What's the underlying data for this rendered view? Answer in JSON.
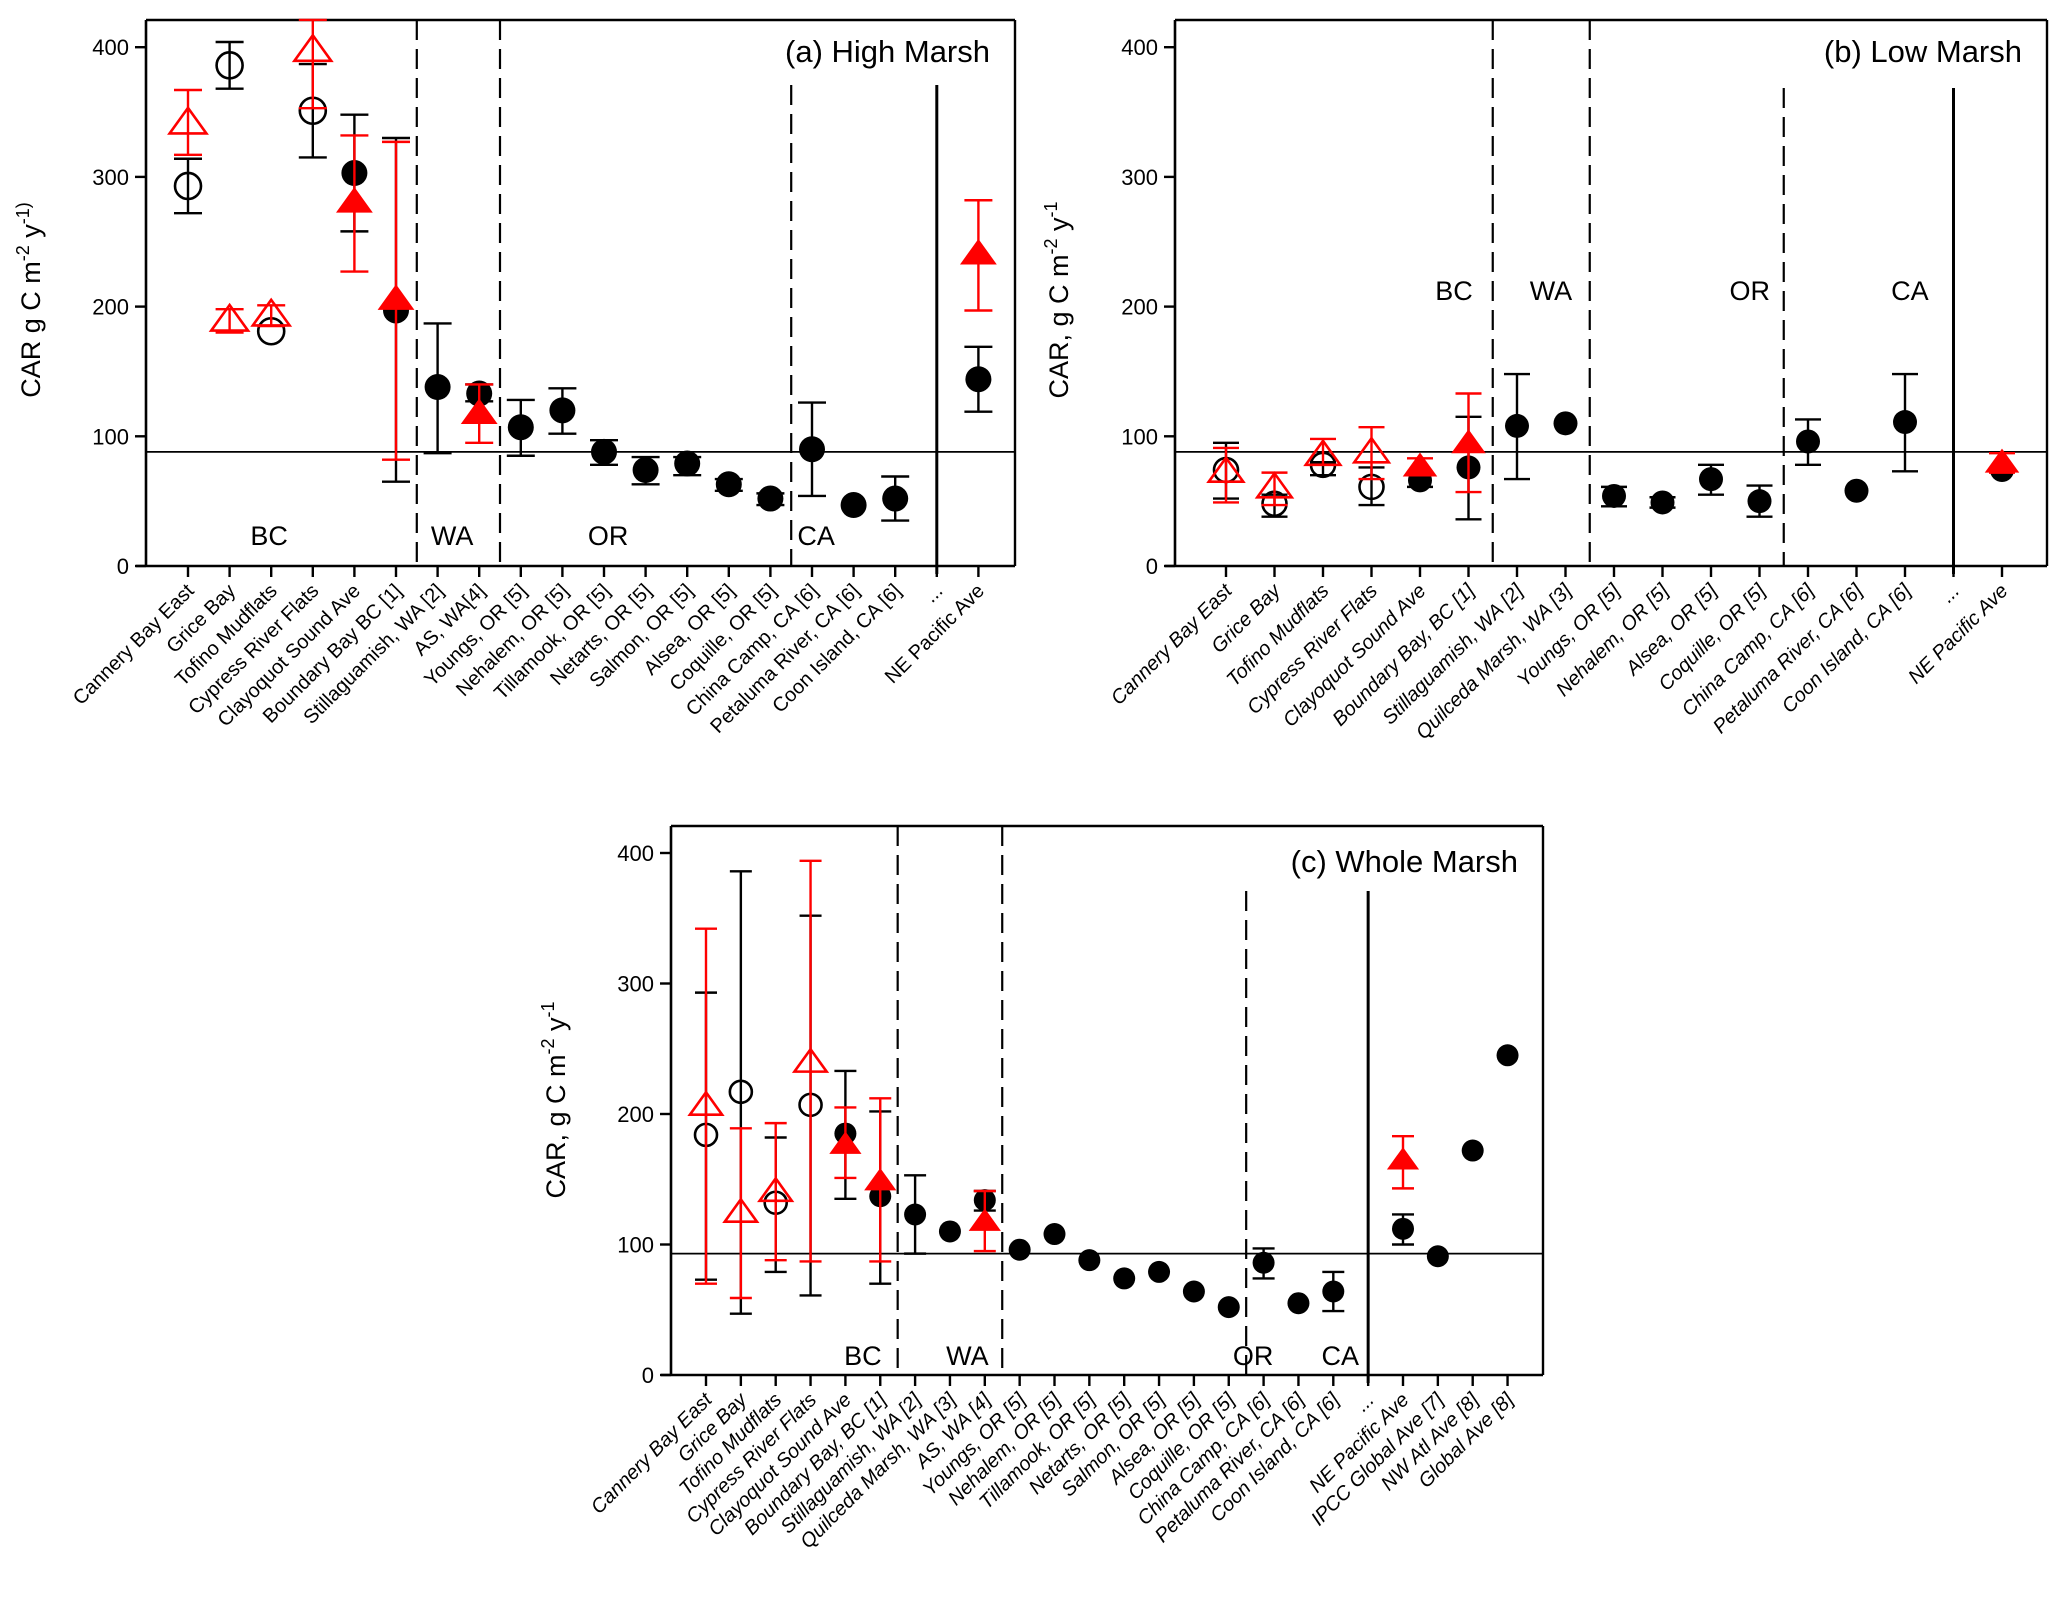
{
  "colors": {
    "black": "#000000",
    "red": "#ff0000"
  },
  "chart_data": [
    {
      "panel": "a",
      "type": "scatter",
      "title": "(a) High Marsh",
      "ylabel": {
        "base": "CAR g C m",
        "sup1": "-2",
        "mid": " y",
        "sup2": "-1)"
      },
      "xlabel": "",
      "ylim": [
        0,
        425
      ],
      "yticks": [
        0,
        100,
        200,
        300,
        400
      ],
      "grid": false,
      "italic_categories": false,
      "reference_line": 88,
      "categories": [
        "Cannery Bay East",
        "Grice Bay",
        "Tofino Mudflats",
        "Cypress River Flats",
        "Clayoquot Sound Ave",
        "Boundary Bay BC [1]",
        "Stillaguamish, WA [2]",
        "AS, WA[4]",
        "Youngs, OR [5]",
        "Nehalem, OR [5]",
        "Tillamook, OR [5]",
        "Netarts, OR [5]",
        "Salmon, OR [5]",
        "Alsea, OR [5]",
        "Coquille, OR [5]",
        "China Camp, CA [6]",
        "Petaluma River, CA [6]",
        "Coon Island, CA [6]",
        "...",
        "NE Pacific Ave"
      ],
      "regions": [
        {
          "label": "BC",
          "start": 0,
          "end": 5
        },
        {
          "label": "WA",
          "start": 6,
          "end": 7
        },
        {
          "label": "OR",
          "start": 8,
          "end": 14
        },
        {
          "label": "CA",
          "start": 15,
          "end": 17
        }
      ],
      "break_index": 18,
      "series": [
        {
          "marker": "open-circle",
          "color": "black",
          "points": [
            {
              "cat": 0,
              "v": 293,
              "lo": 272,
              "hi": 314
            },
            {
              "cat": 1,
              "v": 386,
              "lo": 368,
              "hi": 404
            },
            {
              "cat": 2,
              "v": 181
            },
            {
              "cat": 3,
              "v": 351,
              "lo": 315,
              "hi": 387
            }
          ]
        },
        {
          "marker": "open-triangle",
          "color": "red",
          "points": [
            {
              "cat": 0,
              "v": 341,
              "lo": 317,
              "hi": 367
            },
            {
              "cat": 1,
              "v": 189,
              "lo": 180,
              "hi": 198
            },
            {
              "cat": 2,
              "v": 193,
              "lo": 185,
              "hi": 201
            },
            {
              "cat": 3,
              "v": 397,
              "lo": 353,
              "hi": 421
            }
          ]
        },
        {
          "marker": "filled-circle",
          "color": "black",
          "points": [
            {
              "cat": 4,
              "v": 303,
              "lo": 258,
              "hi": 348
            },
            {
              "cat": 5,
              "v": 197,
              "lo": 65,
              "hi": 330
            },
            {
              "cat": 6,
              "v": 138,
              "lo": 87,
              "hi": 187
            },
            {
              "cat": 7,
              "v": 133,
              "lo": 127,
              "hi": 140
            },
            {
              "cat": 8,
              "v": 107,
              "lo": 85,
              "hi": 128
            },
            {
              "cat": 9,
              "v": 120,
              "lo": 102,
              "hi": 137
            },
            {
              "cat": 10,
              "v": 88,
              "lo": 78,
              "hi": 97
            },
            {
              "cat": 11,
              "v": 74,
              "lo": 63,
              "hi": 84
            },
            {
              "cat": 12,
              "v": 79,
              "lo": 70,
              "hi": 84
            },
            {
              "cat": 13,
              "v": 63,
              "lo": 58,
              "hi": 67
            },
            {
              "cat": 14,
              "v": 52,
              "lo": 47,
              "hi": 56
            },
            {
              "cat": 15,
              "v": 90,
              "lo": 54,
              "hi": 126
            },
            {
              "cat": 16,
              "v": 47
            },
            {
              "cat": 17,
              "v": 52,
              "lo": 35,
              "hi": 69
            },
            {
              "cat": 19,
              "v": 144,
              "lo": 119,
              "hi": 169
            }
          ]
        },
        {
          "marker": "filled-triangle",
          "color": "red",
          "points": [
            {
              "cat": 4,
              "v": 280,
              "lo": 227,
              "hi": 332
            },
            {
              "cat": 5,
              "v": 205,
              "lo": 82,
              "hi": 327
            },
            {
              "cat": 7,
              "v": 117,
              "lo": 95,
              "hi": 140
            },
            {
              "cat": 19,
              "v": 240,
              "lo": 197,
              "hi": 282
            }
          ]
        }
      ]
    },
    {
      "panel": "b",
      "type": "scatter",
      "title": "(b) Low Marsh",
      "ylabel": {
        "base": "CAR, g C m",
        "sup1": "-2",
        "mid": " y",
        "sup2": "-1"
      },
      "xlabel": "",
      "ylim": [
        0,
        425
      ],
      "yticks": [
        0,
        100,
        200,
        300,
        400
      ],
      "grid": false,
      "italic_categories": true,
      "reference_line": 88,
      "categories": [
        "Cannery Bay East",
        "Grice Bay",
        "Tofino Mudflats",
        "Cypress River Flats",
        "Clayoquot Sound Ave",
        "Boundary Bay, BC [1]",
        "Stillaguamish, WA [2]",
        "Quilceda Marsh, WA [3]",
        "Youngs, OR [5]",
        "Nehalem, OR [5]",
        "Alsea, OR [5]",
        "Coquille, OR [5]",
        "China Camp, CA [6]",
        "Petaluma River, CA [6]",
        "Coon Island, CA [6]",
        "...",
        "NE Pacific Ave"
      ],
      "regions": [
        {
          "label": "BC",
          "start": 0,
          "end": 5
        },
        {
          "label": "WA",
          "start": 6,
          "end": 7
        },
        {
          "label": "OR",
          "start": 8,
          "end": 11
        },
        {
          "label": "CA",
          "start": 12,
          "end": 14
        }
      ],
      "break_index": 15,
      "series": [
        {
          "marker": "open-circle",
          "color": "black",
          "points": [
            {
              "cat": 0,
              "v": 74,
              "lo": 52,
              "hi": 95
            },
            {
              "cat": 1,
              "v": 48,
              "lo": 38,
              "hi": 55
            },
            {
              "cat": 2,
              "v": 78,
              "lo": 70,
              "hi": 80
            },
            {
              "cat": 3,
              "v": 61,
              "lo": 47,
              "hi": 76
            }
          ]
        },
        {
          "marker": "open-triangle",
          "color": "red",
          "points": [
            {
              "cat": 0,
              "v": 72,
              "lo": 49,
              "hi": 91
            },
            {
              "cat": 1,
              "v": 60,
              "lo": 47,
              "hi": 72
            },
            {
              "cat": 2,
              "v": 85,
              "lo": 78,
              "hi": 98
            },
            {
              "cat": 3,
              "v": 87,
              "lo": 67,
              "hi": 107
            }
          ]
        },
        {
          "marker": "filled-circle",
          "color": "black",
          "points": [
            {
              "cat": 4,
              "v": 66,
              "lo": 61,
              "hi": 70
            },
            {
              "cat": 5,
              "v": 76,
              "lo": 36,
              "hi": 115
            },
            {
              "cat": 6,
              "v": 108,
              "lo": 67,
              "hi": 148
            },
            {
              "cat": 7,
              "v": 110
            },
            {
              "cat": 8,
              "v": 54,
              "lo": 46,
              "hi": 61
            },
            {
              "cat": 9,
              "v": 49,
              "lo": 45,
              "hi": 53
            },
            {
              "cat": 10,
              "v": 67,
              "lo": 55,
              "hi": 78
            },
            {
              "cat": 11,
              "v": 50,
              "lo": 38,
              "hi": 62
            },
            {
              "cat": 12,
              "v": 96,
              "lo": 78,
              "hi": 113
            },
            {
              "cat": 13,
              "v": 58
            },
            {
              "cat": 14,
              "v": 111,
              "lo": 73,
              "hi": 148
            },
            {
              "cat": 16,
              "v": 74
            }
          ]
        },
        {
          "marker": "filled-triangle",
          "color": "red",
          "points": [
            {
              "cat": 4,
              "v": 76,
              "lo": 70,
              "hi": 83
            },
            {
              "cat": 5,
              "v": 94,
              "lo": 57,
              "hi": 133
            },
            {
              "cat": 16,
              "v": 79,
              "lo": 72,
              "hi": 87
            }
          ]
        }
      ]
    },
    {
      "panel": "c",
      "type": "scatter",
      "title": "(c) Whole Marsh",
      "ylabel": {
        "base": "CAR, g C m",
        "sup1": "-2",
        "mid": " y",
        "sup2": "-1"
      },
      "xlabel": "",
      "ylim": [
        0,
        420
      ],
      "yticks": [
        0,
        100,
        200,
        300,
        400
      ],
      "grid": false,
      "italic_categories": true,
      "reference_line": 93,
      "categories": [
        "Cannery Bay East",
        "Grice Bay",
        "Tofino Mudflats",
        "Cypress River Flats",
        "Clayoquot Sound Ave",
        "Boundary Bay, BC [1]",
        "Stillaguamish, WA [2]",
        "Quilceda Marsh, WA [3]",
        "AS, WA [4]",
        "Youngs, OR [5]",
        "Nehalem, OR [5]",
        "Tillamook, OR [5]",
        "Netarts, OR [5]",
        "Salmon, OR [5]",
        "Alsea, OR [5]",
        "Coquille, OR [5]",
        "China Camp, CA [6]",
        "Petaluma River, CA [6]",
        "Coon Island, CA [6]",
        "...",
        "NE Pacific Ave",
        "IPCC Global Ave [7]",
        "NW Atl Ave [8]",
        "Global Ave [8]"
      ],
      "regions": [
        {
          "label": "BC",
          "start": 0,
          "end": 5
        },
        {
          "label": "WA",
          "start": 6,
          "end": 8
        },
        {
          "label": "OR",
          "start": 9,
          "end": 15
        },
        {
          "label": "CA",
          "start": 16,
          "end": 18
        }
      ],
      "break_index": 19,
      "series": [
        {
          "marker": "open-circle",
          "color": "black",
          "points": [
            {
              "cat": 0,
              "v": 184,
              "lo": 73,
              "hi": 293
            },
            {
              "cat": 1,
              "v": 217,
              "lo": 47,
              "hi": 386
            },
            {
              "cat": 2,
              "v": 132,
              "lo": 79,
              "hi": 182
            },
            {
              "cat": 3,
              "v": 207,
              "lo": 61,
              "hi": 352
            }
          ]
        },
        {
          "marker": "open-triangle",
          "color": "red",
          "points": [
            {
              "cat": 0,
              "v": 206,
              "lo": 70,
              "hi": 342
            },
            {
              "cat": 1,
              "v": 124,
              "lo": 59,
              "hi": 189
            },
            {
              "cat": 2,
              "v": 140,
              "lo": 88,
              "hi": 193
            },
            {
              "cat": 3,
              "v": 239,
              "lo": 87,
              "hi": 394
            }
          ]
        },
        {
          "marker": "filled-circle",
          "color": "black",
          "points": [
            {
              "cat": 4,
              "v": 185,
              "lo": 135,
              "hi": 233
            },
            {
              "cat": 5,
              "v": 137,
              "lo": 70,
              "hi": 202
            },
            {
              "cat": 6,
              "v": 123,
              "lo": 93,
              "hi": 153
            },
            {
              "cat": 7,
              "v": 110
            },
            {
              "cat": 8,
              "v": 134,
              "lo": 126,
              "hi": 141
            },
            {
              "cat": 9,
              "v": 96
            },
            {
              "cat": 10,
              "v": 108
            },
            {
              "cat": 11,
              "v": 88
            },
            {
              "cat": 12,
              "v": 74
            },
            {
              "cat": 13,
              "v": 79
            },
            {
              "cat": 14,
              "v": 64
            },
            {
              "cat": 15,
              "v": 52
            },
            {
              "cat": 16,
              "v": 86,
              "lo": 74,
              "hi": 97
            },
            {
              "cat": 17,
              "v": 55
            },
            {
              "cat": 18,
              "v": 64,
              "lo": 49,
              "hi": 79
            },
            {
              "cat": 20,
              "v": 112,
              "lo": 100,
              "hi": 123
            },
            {
              "cat": 21,
              "v": 91
            },
            {
              "cat": 22,
              "v": 172
            },
            {
              "cat": 23,
              "v": 245
            }
          ]
        },
        {
          "marker": "filled-triangle",
          "color": "red",
          "points": [
            {
              "cat": 4,
              "v": 176,
              "lo": 151,
              "hi": 205
            },
            {
              "cat": 5,
              "v": 148,
              "lo": 87,
              "hi": 212
            },
            {
              "cat": 8,
              "v": 117,
              "lo": 95,
              "hi": 141
            },
            {
              "cat": 20,
              "v": 164,
              "lo": 143,
              "hi": 183
            }
          ]
        }
      ]
    }
  ]
}
